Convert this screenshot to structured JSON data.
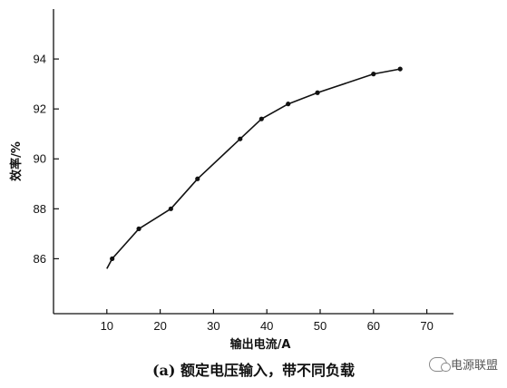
{
  "chart_data": {
    "type": "line",
    "title": "(a) 额定电压输入，带不同负载",
    "xlabel": "输出电流/A",
    "ylabel": "效率/%",
    "xlim": [
      0,
      75
    ],
    "ylim": [
      83.8,
      96.0
    ],
    "xticks": [
      10,
      20,
      30,
      40,
      50,
      60,
      70
    ],
    "yticks": [
      86,
      88,
      90,
      92,
      94
    ],
    "grid": false,
    "series": [
      {
        "x": [
          10.0,
          11.0,
          16.0,
          22.0,
          27.0,
          35.0,
          39.0,
          44.0,
          49.5,
          60.0,
          65.0
        ],
        "y": [
          85.6,
          86.0,
          87.2,
          88.0,
          89.2,
          90.8,
          91.6,
          92.2,
          92.65,
          93.4,
          93.6
        ],
        "markers": [
          false,
          true,
          true,
          true,
          true,
          true,
          true,
          true,
          true,
          true,
          true
        ]
      }
    ]
  },
  "watermark": {
    "text": "电源联盟",
    "icon": "wechat-icon"
  }
}
